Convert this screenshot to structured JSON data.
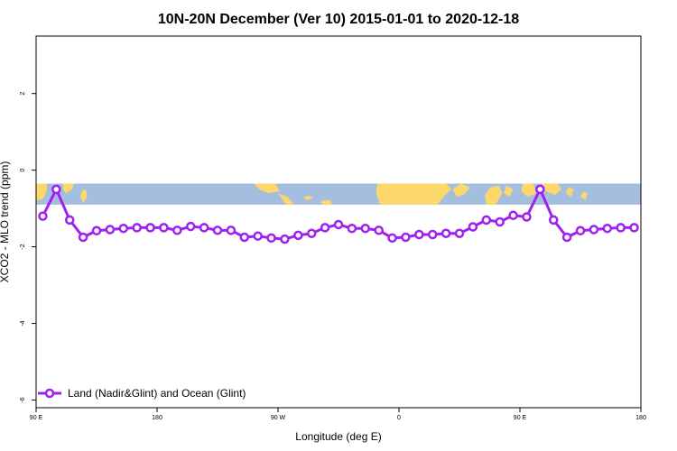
{
  "chart_data": {
    "type": "line",
    "title": "10N-20N December (Ver 10)   2015-01-01 to 2020-12-18",
    "xlabel": "Longitude (deg E)",
    "ylabel": "XCO2 - MLO trend (ppm)",
    "xlim": [
      90,
      540
    ],
    "ylim": [
      -6.2,
      3.5
    ],
    "x_ticks": [
      {
        "value": 90,
        "label": "90 E"
      },
      {
        "value": 180,
        "label": "180"
      },
      {
        "value": 270,
        "label": "90 W"
      },
      {
        "value": 360,
        "label": "0"
      },
      {
        "value": 450,
        "label": "90 E"
      },
      {
        "value": 540,
        "label": "180"
      }
    ],
    "y_ticks": [
      {
        "value": 2,
        "label": "2"
      },
      {
        "value": 0,
        "label": "0"
      },
      {
        "value": -2,
        "label": "-2"
      },
      {
        "value": -4,
        "label": "-4"
      },
      {
        "value": -6,
        "label": "-6"
      }
    ],
    "map_band": {
      "y_from": -0.35,
      "y_to": -0.9,
      "ocean_color": "#a4bedf",
      "land_color": "#fcd76b"
    },
    "series": [
      {
        "name": "Land (Nadir&Glint) and Ocean (Glint)",
        "color": "#a020f0",
        "x": [
          95,
          105,
          115,
          125,
          135,
          145,
          155,
          165,
          175,
          185,
          195,
          205,
          215,
          225,
          235,
          245,
          255,
          265,
          275,
          285,
          295,
          305,
          315,
          325,
          335,
          345,
          355,
          365,
          375,
          385,
          395,
          405,
          415,
          425,
          435,
          445,
          455,
          465,
          475,
          485,
          495,
          505,
          515,
          525,
          535
        ],
        "values": [
          -1.2,
          -0.5,
          -1.3,
          -1.75,
          -1.58,
          -1.55,
          -1.52,
          -1.5,
          -1.5,
          -1.5,
          -1.57,
          -1.47,
          -1.5,
          -1.57,
          -1.57,
          -1.75,
          -1.72,
          -1.77,
          -1.8,
          -1.7,
          -1.65,
          -1.5,
          -1.42,
          -1.52,
          -1.52,
          -1.57,
          -1.77,
          -1.75,
          -1.68,
          -1.68,
          -1.65,
          -1.65,
          -1.48,
          -1.3,
          -1.35,
          -1.18,
          -1.22,
          -0.5,
          -1.3,
          -1.75,
          -1.58,
          -1.55,
          -1.52,
          -1.5,
          -1.5
        ]
      }
    ],
    "legend": {
      "position": "bottom-left"
    }
  }
}
